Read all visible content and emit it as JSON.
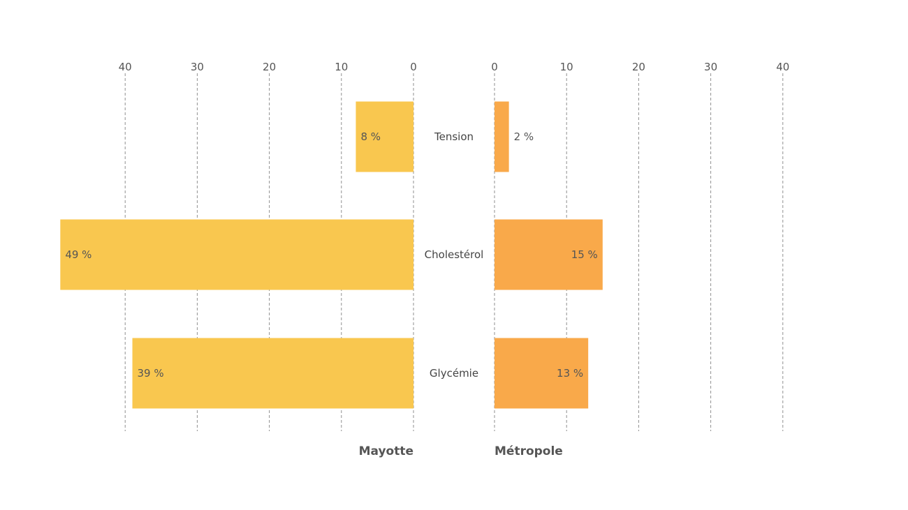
{
  "chart_data": {
    "type": "bar",
    "orientation": "horizontal",
    "layout": "butterfly",
    "categories": [
      "Tension",
      "Cholestérol",
      "Glycémie"
    ],
    "series": [
      {
        "name": "Mayotte",
        "values": [
          8,
          49,
          39
        ],
        "labels": [
          "8 %",
          "49 %",
          "39 %"
        ],
        "color": "#F9C74F"
      },
      {
        "name": "Métropole",
        "values": [
          2,
          15,
          13
        ],
        "labels": [
          "2 %",
          "15 %",
          "13 %"
        ],
        "color": "#F9A94A"
      }
    ],
    "ticks": [
      0,
      10,
      20,
      30,
      40
    ],
    "xlim": [
      0,
      49
    ],
    "grid": true,
    "title": "",
    "xlabel": "",
    "ylabel": ""
  }
}
